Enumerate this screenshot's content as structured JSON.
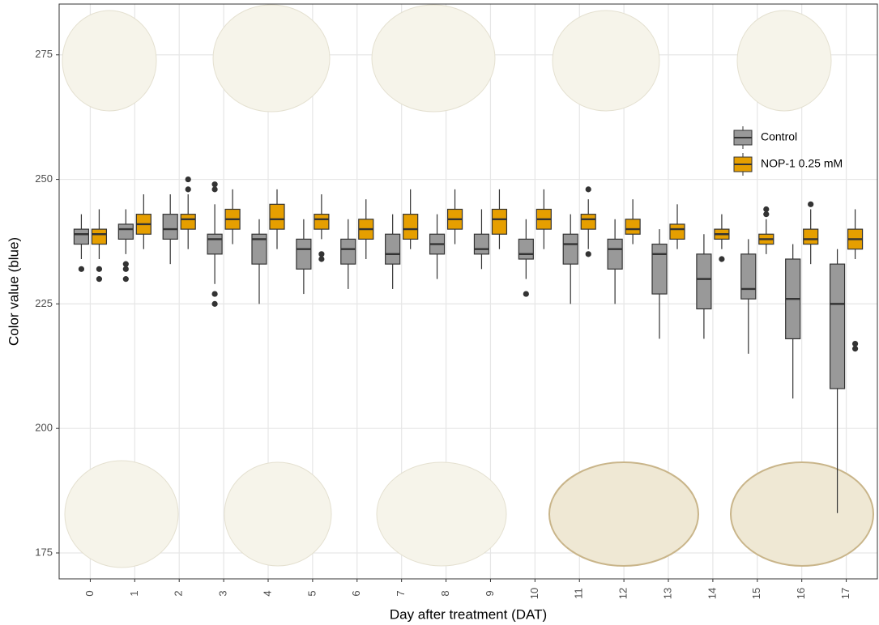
{
  "chart_data": {
    "type": "box",
    "xlabel": "Day after treatment (DAT)",
    "ylabel": "Color value (blue)",
    "categories": [
      "0",
      "1",
      "2",
      "3",
      "4",
      "5",
      "6",
      "7",
      "8",
      "9",
      "10",
      "11",
      "12",
      "13",
      "14",
      "15",
      "16",
      "17"
    ],
    "ylim": [
      169.8,
      285.2
    ],
    "yticks": [
      175,
      200,
      225,
      250,
      275
    ],
    "grid": true,
    "legend": "top-right",
    "series": [
      {
        "name": "Control",
        "color": "#999999",
        "boxes": [
          {
            "low": 234,
            "q1": 237,
            "median": 239,
            "q3": 240,
            "high": 243,
            "outliers": [
              232
            ]
          },
          {
            "low": 235,
            "q1": 238,
            "median": 240,
            "q3": 241,
            "high": 244,
            "outliers": [
              233,
              232,
              230
            ]
          },
          {
            "low": 233,
            "q1": 238,
            "median": 240,
            "q3": 243,
            "high": 247,
            "outliers": []
          },
          {
            "low": 229,
            "q1": 235,
            "median": 238,
            "q3": 239,
            "high": 245,
            "outliers": [
              249,
              248,
              227,
              225
            ]
          },
          {
            "low": 225,
            "q1": 233,
            "median": 238,
            "q3": 239,
            "high": 242,
            "outliers": []
          },
          {
            "low": 227,
            "q1": 232,
            "median": 236,
            "q3": 238,
            "high": 242,
            "outliers": []
          },
          {
            "low": 228,
            "q1": 233,
            "median": 236,
            "q3": 238,
            "high": 242,
            "outliers": []
          },
          {
            "low": 228,
            "q1": 233,
            "median": 235,
            "q3": 239,
            "high": 243,
            "outliers": []
          },
          {
            "low": 230,
            "q1": 235,
            "median": 237,
            "q3": 239,
            "high": 243,
            "outliers": []
          },
          {
            "low": 232,
            "q1": 235,
            "median": 236,
            "q3": 239,
            "high": 244,
            "outliers": []
          },
          {
            "low": 230,
            "q1": 234,
            "median": 235,
            "q3": 238,
            "high": 242,
            "outliers": [
              227
            ]
          },
          {
            "low": 225,
            "q1": 233,
            "median": 237,
            "q3": 239,
            "high": 243,
            "outliers": []
          },
          {
            "low": 225,
            "q1": 232,
            "median": 236,
            "q3": 238,
            "high": 242,
            "outliers": []
          },
          {
            "low": 218,
            "q1": 227,
            "median": 235,
            "q3": 237,
            "high": 240,
            "outliers": []
          },
          {
            "low": 218,
            "q1": 224,
            "median": 230,
            "q3": 235,
            "high": 239,
            "outliers": []
          },
          {
            "low": 215,
            "q1": 226,
            "median": 228,
            "q3": 235,
            "high": 238,
            "outliers": []
          },
          {
            "low": 206,
            "q1": 218,
            "median": 226,
            "q3": 234,
            "high": 237,
            "outliers": []
          },
          {
            "low": 183,
            "q1": 208,
            "median": 225,
            "q3": 233,
            "high": 236,
            "outliers": []
          }
        ]
      },
      {
        "name": "NOP-1 0.25 mM",
        "color": "#E69F00",
        "boxes": [
          {
            "low": 234,
            "q1": 237,
            "median": 239,
            "q3": 240,
            "high": 244,
            "outliers": [
              232,
              230
            ]
          },
          {
            "low": 236,
            "q1": 239,
            "median": 241,
            "q3": 243,
            "high": 247,
            "outliers": []
          },
          {
            "low": 236,
            "q1": 240,
            "median": 242,
            "q3": 243,
            "high": 247,
            "outliers": [
              250,
              248
            ]
          },
          {
            "low": 237,
            "q1": 240,
            "median": 242,
            "q3": 244,
            "high": 248,
            "outliers": []
          },
          {
            "low": 236,
            "q1": 240,
            "median": 242,
            "q3": 245,
            "high": 248,
            "outliers": []
          },
          {
            "low": 238,
            "q1": 240,
            "median": 242,
            "q3": 243,
            "high": 247,
            "outliers": [
              235,
              234
            ]
          },
          {
            "low": 234,
            "q1": 238,
            "median": 240,
            "q3": 242,
            "high": 246,
            "outliers": []
          },
          {
            "low": 236,
            "q1": 238,
            "median": 240,
            "q3": 243,
            "high": 248,
            "outliers": []
          },
          {
            "low": 237,
            "q1": 240,
            "median": 242,
            "q3": 244,
            "high": 248,
            "outliers": []
          },
          {
            "low": 236,
            "q1": 239,
            "median": 242,
            "q3": 244,
            "high": 248,
            "outliers": []
          },
          {
            "low": 236,
            "q1": 240,
            "median": 242,
            "q3": 244,
            "high": 248,
            "outliers": []
          },
          {
            "low": 236,
            "q1": 240,
            "median": 242,
            "q3": 243,
            "high": 246,
            "outliers": [
              248,
              235
            ]
          },
          {
            "low": 237,
            "q1": 239,
            "median": 240,
            "q3": 242,
            "high": 246,
            "outliers": []
          },
          {
            "low": 236,
            "q1": 238,
            "median": 240,
            "q3": 241,
            "high": 245,
            "outliers": []
          },
          {
            "low": 236,
            "q1": 238,
            "median": 239,
            "q3": 240,
            "high": 243,
            "outliers": [
              234
            ]
          },
          {
            "low": 235,
            "q1": 237,
            "median": 238,
            "q3": 239,
            "high": 242,
            "outliers": [
              244,
              243
            ]
          },
          {
            "low": 233,
            "q1": 237,
            "median": 238,
            "q3": 240,
            "high": 244,
            "outliers": [
              245
            ]
          },
          {
            "low": 234,
            "q1": 236,
            "median": 238,
            "q3": 240,
            "high": 244,
            "outliers": [
              217,
              216
            ]
          }
        ]
      }
    ]
  }
}
